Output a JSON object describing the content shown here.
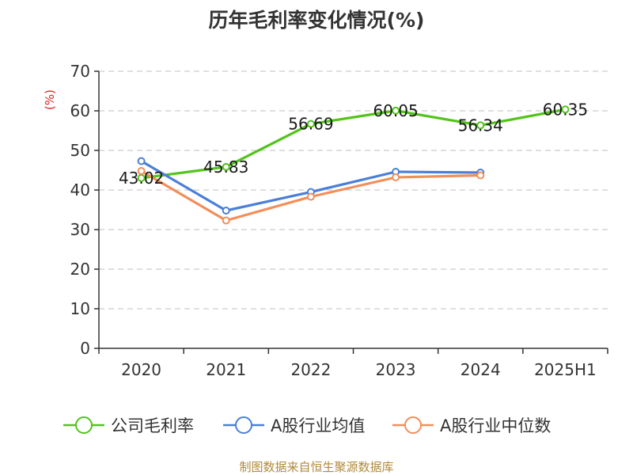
{
  "chart_data": {
    "type": "line",
    "title": "历年毛利率变化情况(%)",
    "ylabel": "(%)",
    "xlabel": "",
    "ylim": [
      0,
      70
    ],
    "yticks": [
      0,
      10,
      20,
      30,
      40,
      50,
      60,
      70
    ],
    "categories": [
      "2020",
      "2021",
      "2022",
      "2023",
      "2024",
      "2025H1"
    ],
    "series": [
      {
        "name": "公司毛利率",
        "color": "#52c41a",
        "values": [
          43.02,
          45.83,
          56.69,
          60.05,
          56.34,
          60.35
        ],
        "labels": [
          "43.02",
          "45.83",
          "56.69",
          "60.05",
          "56.34",
          "60.35"
        ]
      },
      {
        "name": "A股行业均值",
        "color": "#4a7fd9",
        "values": [
          47.3,
          34.8,
          39.5,
          44.6,
          44.4,
          null
        ]
      },
      {
        "name": "A股行业中位数",
        "color": "#f28e5a",
        "values": [
          44.8,
          32.3,
          38.3,
          43.2,
          43.7,
          null
        ]
      }
    ],
    "grid": true,
    "legend": "bottom",
    "source": "制图数据来自恒生聚源数据库"
  }
}
